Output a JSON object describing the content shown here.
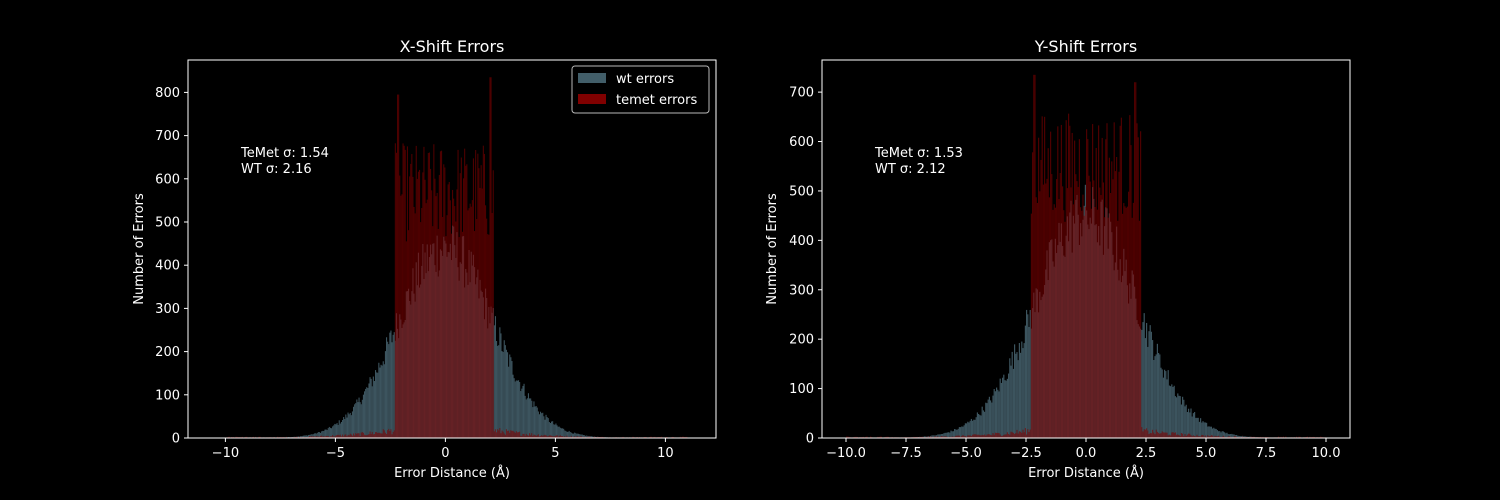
{
  "chart_data": [
    {
      "type": "bar",
      "title": "X-Shift Errors",
      "xlabel": "Error Distance (Å)",
      "ylabel": "Number of Errors",
      "xlim": [
        -11.7,
        12.3
      ],
      "ylim": [
        0,
        875
      ],
      "xticks": [
        -10,
        -5,
        0,
        5,
        10
      ],
      "xtick_labels": [
        "−10",
        "−5",
        "0",
        "5",
        "10"
      ],
      "yticks": [
        0,
        100,
        200,
        300,
        400,
        500,
        600,
        700,
        800
      ],
      "annotation": [
        "TeMet σ: 1.54",
        "WT σ: 2.16"
      ],
      "legend": {
        "position": "top-right"
      },
      "series": [
        {
          "name": "wt errors",
          "color": "#46636f",
          "shape": "gaussian",
          "peak": 440,
          "sigma": 2.16,
          "support": [
            -10,
            10
          ]
        },
        {
          "name": "temet errors",
          "color": "#800000",
          "plateau": [
            -2.3,
            2.2
          ],
          "plateau_mean": 580,
          "plateau_spikes": [
            795,
            835
          ],
          "tail_level": 18,
          "support": [
            -10,
            11
          ]
        }
      ]
    },
    {
      "type": "bar",
      "title": "Y-Shift Errors",
      "xlabel": "Error Distance (Å)",
      "ylabel": "Number of Errors",
      "xlim": [
        -11.0,
        11.0
      ],
      "ylim": [
        0,
        765
      ],
      "xticks": [
        -10,
        -7.5,
        -5,
        -2.5,
        0,
        2.5,
        5,
        7.5,
        10
      ],
      "xtick_labels": [
        "−10.0",
        "−7.5",
        "−5.0",
        "−2.5",
        "0.0",
        "2.5",
        "5.0",
        "7.5",
        "10.0"
      ],
      "yticks": [
        0,
        100,
        200,
        300,
        400,
        500,
        600,
        700
      ],
      "annotation": [
        "TeMet σ: 1.53",
        "WT σ: 2.12"
      ],
      "series": [
        {
          "name": "wt errors",
          "color": "#46636f",
          "shape": "gaussian",
          "peak": 450,
          "sigma": 2.12,
          "support": [
            -10,
            10
          ]
        },
        {
          "name": "temet errors",
          "color": "#800000",
          "plateau": [
            -2.3,
            2.3
          ],
          "plateau_mean": 560,
          "plateau_spikes": [
            735,
            720
          ],
          "tail_level": 15,
          "support": [
            -10,
            10
          ]
        }
      ]
    }
  ]
}
